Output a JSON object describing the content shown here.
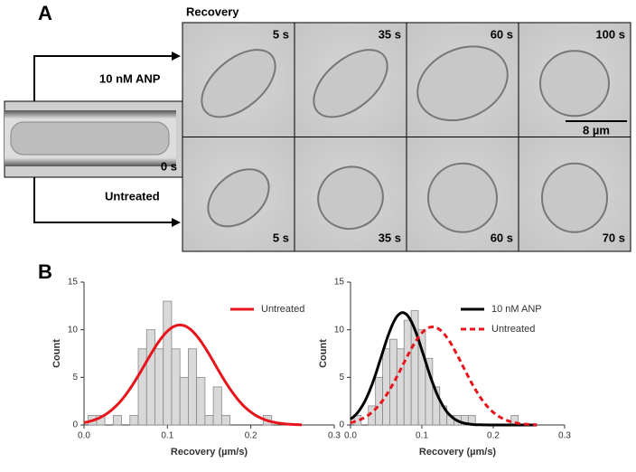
{
  "panels": {
    "a_label": "A",
    "b_label": "B",
    "recovery": "Recovery",
    "anp": "10 nM ANP",
    "untreated": "Untreated",
    "start_time": "0 s",
    "scale_bar": "8 µm",
    "anp_times": [
      "5 s",
      "35 s",
      "60 s",
      "100 s"
    ],
    "untreated_times": [
      "5 s",
      "35 s",
      "60 s",
      "70 s"
    ]
  },
  "chart_data": [
    {
      "type": "histogram",
      "xlabel": "Recovery (µm/s)",
      "ylabel": "Count",
      "bins": [
        0.005,
        0.015,
        0.025,
        0.035,
        0.045,
        0.055,
        0.065,
        0.075,
        0.085,
        0.095,
        0.105,
        0.115,
        0.125,
        0.135,
        0.145,
        0.155,
        0.165,
        0.175,
        0.185,
        0.195,
        0.205,
        0.215,
        0.225,
        0.235,
        0.245,
        0.255
      ],
      "values": [
        1,
        1,
        0,
        1,
        0,
        1,
        8,
        10,
        8,
        13,
        8,
        5,
        8,
        5,
        1,
        4,
        1,
        0,
        0,
        0,
        0,
        1,
        0,
        0,
        0
      ],
      "color": "#d9d9d9",
      "fits": [
        {
          "name": "Untreated",
          "color": "#e8141b",
          "dashed": false,
          "peak": 10.5,
          "mean": 0.115,
          "sd": 0.042
        }
      ],
      "xlim": [
        0,
        0.3
      ],
      "ylim": [
        0,
        15
      ],
      "xticks": [
        {
          "value": 0,
          "label": "0.0"
        },
        0.1,
        0.2,
        0.3
      ],
      "yticks": [
        0,
        5,
        10,
        15
      ],
      "legend": "upper right"
    },
    {
      "type": "histogram",
      "xlabel": "Recovery (µm/s)",
      "ylabel": "Count",
      "bins": [
        0.005,
        0.015,
        0.025,
        0.035,
        0.045,
        0.055,
        0.065,
        0.075,
        0.085,
        0.095,
        0.105,
        0.115,
        0.125,
        0.135,
        0.145,
        0.155,
        0.165,
        0.175,
        0.185,
        0.195,
        0.205,
        0.215,
        0.225,
        0.235,
        0.245,
        0.255
      ],
      "values": [
        1,
        0,
        2,
        5,
        8,
        9,
        8,
        11,
        12,
        10,
        7,
        4,
        2,
        1,
        1,
        1,
        1,
        0,
        0,
        0,
        0,
        0,
        1,
        0,
        0
      ],
      "color": "#d9d9d9",
      "fits": [
        {
          "name": "10 nM ANP",
          "color": "#000000",
          "dashed": false,
          "peak": 11.8,
          "mean": 0.073,
          "sd": 0.03
        },
        {
          "name": "Untreated",
          "color": "#e8141b",
          "dashed": true,
          "peak": 10.3,
          "mean": 0.115,
          "sd": 0.042
        }
      ],
      "xlim": [
        0,
        0.3
      ],
      "ylim": [
        0,
        15
      ],
      "xticks": [
        {
          "value": 0,
          "label": "0.0"
        },
        0.1,
        0.2,
        0.3
      ],
      "yticks": [
        0,
        5,
        10,
        15
      ],
      "legend": "upper right"
    }
  ]
}
